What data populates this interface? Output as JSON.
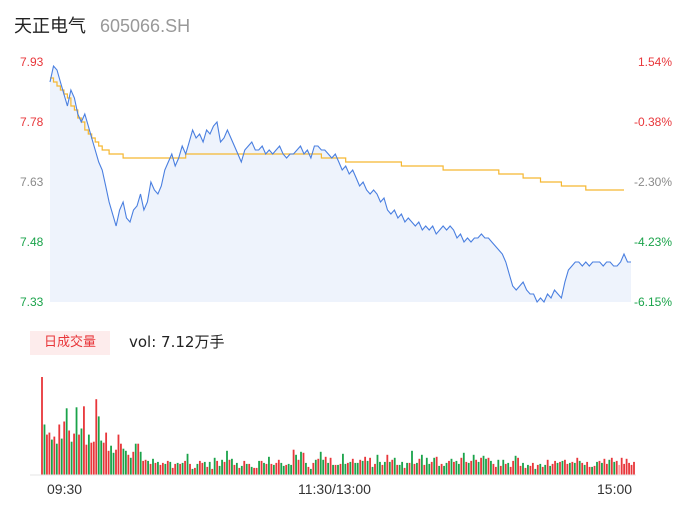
{
  "header": {
    "name": "天正电气",
    "code": "605066.SH"
  },
  "volume_panel": {
    "badge": "日成交量",
    "summary": "vol: 7.12万手"
  },
  "colors": {
    "price_line": "#4a7fe0",
    "avg_line": "#f5b731",
    "area_fill": "#eef3fc",
    "up": "#e8363a",
    "down": "#1aa34a",
    "flat": "#8a8a8a"
  },
  "chart_data": [
    {
      "type": "line",
      "title": "",
      "prev_close": 7.68,
      "ylim": [
        7.33,
        7.93
      ],
      "yticks_left": [
        "7.93",
        "7.78",
        "7.63",
        "7.48",
        "7.33"
      ],
      "yticks_right": [
        "1.54%",
        "-0.38%",
        "-2.30%",
        "-4.23%",
        "-6.15%"
      ],
      "xticks": [
        "09:30",
        "11:30/13:00",
        "15:00"
      ],
      "grid": false,
      "n_minutes": 241,
      "series": [
        {
          "name": "",
          "values": [
            7.88,
            7.92,
            7.91,
            7.88,
            7.85,
            7.82,
            7.86,
            7.84,
            7.8,
            7.78,
            7.8,
            7.77,
            7.74,
            7.71,
            7.68,
            7.66,
            7.62,
            7.58,
            7.55,
            7.52,
            7.56,
            7.58,
            7.54,
            7.53,
            7.56,
            7.57,
            7.6,
            7.56,
            7.58,
            7.63,
            7.61,
            7.6,
            7.62,
            7.66,
            7.68,
            7.7,
            7.67,
            7.69,
            7.72,
            7.7,
            7.73,
            7.76,
            7.74,
            7.75,
            7.73,
            7.76,
            7.75,
            7.77,
            7.78,
            7.73,
            7.74,
            7.76,
            7.74,
            7.72,
            7.7,
            7.68,
            7.71,
            7.72,
            7.73,
            7.71,
            7.71,
            7.72,
            7.7,
            7.71,
            7.7,
            7.71,
            7.72,
            7.7,
            7.69,
            7.7,
            7.7,
            7.71,
            7.72,
            7.7,
            7.71,
            7.69,
            7.72,
            7.72,
            7.71,
            7.71,
            7.7,
            7.69,
            7.7,
            7.68,
            7.66,
            7.67,
            7.65,
            7.66,
            7.64,
            7.62,
            7.63,
            7.61,
            7.6,
            7.61,
            7.6,
            7.58,
            7.59,
            7.56,
            7.55,
            7.56,
            7.54,
            7.55,
            7.53,
            7.54,
            7.53,
            7.52,
            7.53,
            7.51,
            7.52,
            7.51,
            7.52,
            7.5,
            7.51,
            7.52,
            7.51,
            7.52,
            7.51,
            7.49,
            7.5,
            7.48,
            7.49,
            7.48,
            7.49,
            7.49,
            7.5,
            7.49,
            7.49,
            7.48,
            7.47,
            7.46,
            7.45,
            7.43,
            7.4,
            7.37,
            7.36,
            7.37,
            7.38,
            7.36,
            7.35,
            7.35,
            7.33,
            7.34,
            7.33,
            7.35,
            7.34,
            7.36,
            7.35,
            7.34,
            7.38,
            7.41,
            7.42,
            7.43,
            7.43,
            7.42,
            7.43,
            7.42,
            7.43,
            7.43,
            7.43,
            7.42,
            7.43,
            7.43,
            7.42,
            7.42,
            7.43,
            7.45,
            7.43,
            7.43
          ],
          "avg_values": [
            7.89,
            7.88,
            7.87,
            7.86,
            7.85,
            7.84,
            7.82,
            7.81,
            7.79,
            7.78,
            7.76,
            7.75,
            7.74,
            7.73,
            7.72,
            7.71,
            7.71,
            7.7,
            7.7,
            7.7,
            7.7,
            7.69,
            7.69,
            7.69,
            7.69,
            7.69,
            7.69,
            7.69,
            7.69,
            7.69,
            7.69,
            7.69,
            7.69,
            7.69,
            7.69,
            7.69,
            7.69,
            7.69,
            7.69,
            7.7,
            7.7,
            7.7,
            7.7,
            7.7,
            7.7,
            7.7,
            7.7,
            7.7,
            7.7,
            7.7,
            7.7,
            7.7,
            7.7,
            7.7,
            7.7,
            7.7,
            7.7,
            7.7,
            7.7,
            7.7,
            7.7,
            7.7,
            7.7,
            7.7,
            7.7,
            7.7,
            7.7,
            7.7,
            7.7,
            7.7,
            7.7,
            7.7,
            7.7,
            7.7,
            7.7,
            7.7,
            7.7,
            7.7,
            7.69,
            7.69,
            7.69,
            7.69,
            7.69,
            7.69,
            7.69,
            7.68,
            7.68,
            7.68,
            7.68,
            7.68,
            7.68,
            7.68,
            7.68,
            7.68,
            7.68,
            7.68,
            7.68,
            7.68,
            7.68,
            7.68,
            7.68,
            7.67,
            7.67,
            7.67,
            7.67,
            7.67,
            7.67,
            7.67,
            7.67,
            7.67,
            7.67,
            7.67,
            7.67,
            7.66,
            7.66,
            7.66,
            7.66,
            7.66,
            7.66,
            7.66,
            7.66,
            7.66,
            7.66,
            7.66,
            7.66,
            7.66,
            7.66,
            7.66,
            7.66,
            7.65,
            7.65,
            7.65,
            7.65,
            7.65,
            7.65,
            7.65,
            7.64,
            7.64,
            7.64,
            7.64,
            7.64,
            7.63,
            7.63,
            7.63,
            7.63,
            7.63,
            7.63,
            7.62,
            7.62,
            7.62,
            7.62,
            7.62,
            7.62,
            7.62,
            7.61,
            7.61,
            7.61,
            7.61,
            7.61,
            7.61,
            7.61,
            7.61,
            7.61,
            7.61,
            7.61,
            7.61
          ]
        }
      ]
    },
    {
      "type": "bar",
      "title": "",
      "n_minutes": 241,
      "volume": [
        97,
        50,
        40,
        42,
        35,
        38,
        31,
        50,
        36,
        53,
        66,
        44,
        33,
        41,
        67,
        40,
        46,
        68,
        30,
        40,
        32,
        33,
        75,
        58,
        34,
        32,
        42,
        24,
        29,
        22,
        25,
        40,
        31,
        26,
        24,
        20,
        17,
        23,
        31,
        31,
        23,
        14,
        15,
        14,
        11,
        16,
        12,
        13,
        10,
        12,
        11,
        14,
        13,
        7,
        11,
        12,
        11,
        12,
        14,
        21,
        11,
        6,
        7,
        11,
        14,
        12,
        13,
        8,
        13,
        6,
        17,
        14,
        9,
        15,
        13,
        24,
        15,
        16,
        10,
        12,
        7,
        9,
        14,
        11,
        11,
        8,
        7,
        7,
        14,
        14,
        12,
        11,
        18,
        11,
        10,
        12,
        15,
        12,
        9,
        10,
        11,
        10,
        25,
        20,
        15,
        23,
        22,
        12,
        8,
        6,
        12,
        15,
        16,
        23,
        15,
        18,
        12,
        17,
        10,
        10,
        10,
        11,
        21,
        11,
        12,
        13,
        16,
        12,
        12,
        15,
        14,
        18,
        14,
        17,
        8,
        11,
        20,
        13,
        10,
        13,
        20,
        13,
        15,
        17,
        10,
        10,
        13,
        7,
        12,
        12,
        24,
        11,
        12,
        16,
        20,
        10,
        17,
        11,
        13,
        17,
        18,
        9,
        11,
        9,
        12,
        14,
        16,
        13,
        14,
        11,
        17,
        22,
        13,
        12,
        14,
        20,
        15,
        13,
        17,
        19,
        16,
        17,
        14,
        11,
        8,
        15,
        9,
        15,
        11,
        12,
        8,
        14,
        19,
        17,
        9,
        12,
        7,
        10,
        9,
        12,
        6,
        10,
        11,
        8,
        10,
        15,
        9,
        11,
        14,
        12,
        13,
        14,
        15,
        11,
        12,
        13,
        12,
        17,
        14,
        12,
        10,
        13,
        8,
        8,
        9,
        13,
        14,
        12,
        16,
        11,
        15,
        17,
        13,
        14,
        10,
        17,
        11,
        16,
        12,
        10,
        13
      ],
      "colors": [
        "r",
        "g",
        "r",
        "r",
        "g",
        "r",
        "g",
        "r",
        "g",
        "r",
        "g",
        "r",
        "g",
        "r",
        "g",
        "r",
        "g",
        "r",
        "r",
        "g",
        "r",
        "r",
        "r",
        "g",
        "g",
        "r",
        "r",
        "r",
        "g",
        "g",
        "r",
        "r",
        "r",
        "g",
        "g",
        "r",
        "g",
        "r",
        "g",
        "r",
        "g",
        "r",
        "r",
        "g",
        "r",
        "g",
        "r",
        "g",
        "r",
        "r",
        "g",
        "r",
        "g",
        "r",
        "r",
        "g",
        "r",
        "g",
        "r",
        "g",
        "r",
        "g",
        "r",
        "g",
        "r",
        "r",
        "g",
        "r",
        "g",
        "r",
        "g",
        "r",
        "g",
        "g",
        "r",
        "g",
        "r",
        "g",
        "r",
        "g",
        "r",
        "g",
        "r",
        "g",
        "r",
        "g",
        "r",
        "r",
        "g",
        "r",
        "g",
        "r",
        "g",
        "r",
        "g",
        "r",
        "r",
        "g",
        "g",
        "r",
        "g",
        "g",
        "r",
        "g",
        "r",
        "g",
        "r",
        "g",
        "r",
        "g",
        "r",
        "g",
        "r",
        "g",
        "g",
        "r",
        "g",
        "r",
        "g",
        "r",
        "g",
        "r",
        "g",
        "g",
        "r",
        "g",
        "r",
        "g",
        "g",
        "r",
        "g",
        "r",
        "g",
        "r",
        "g",
        "r",
        "g",
        "g",
        "r",
        "g",
        "r",
        "g",
        "r",
        "g",
        "r",
        "g",
        "g",
        "r",
        "g",
        "r",
        "g",
        "r",
        "g",
        "r",
        "g",
        "r",
        "g",
        "g",
        "r",
        "g",
        "r",
        "g",
        "r",
        "g",
        "g",
        "r",
        "g",
        "r",
        "g",
        "g",
        "r",
        "g",
        "r",
        "g",
        "r",
        "g",
        "r",
        "g",
        "r",
        "g",
        "g",
        "r",
        "g",
        "r",
        "r",
        "g",
        "r",
        "g",
        "r",
        "g",
        "r",
        "r",
        "g",
        "r",
        "r",
        "g",
        "r",
        "g",
        "r",
        "r",
        "g",
        "r",
        "g",
        "r",
        "g",
        "r",
        "g",
        "r",
        "r",
        "g",
        "r",
        "g",
        "r",
        "r",
        "g",
        "r",
        "g",
        "r",
        "g",
        "r",
        "g",
        "r",
        "r",
        "g",
        "r",
        "g",
        "r",
        "g",
        "r",
        "r",
        "g",
        "r",
        "g",
        "r",
        "f"
      ]
    }
  ]
}
